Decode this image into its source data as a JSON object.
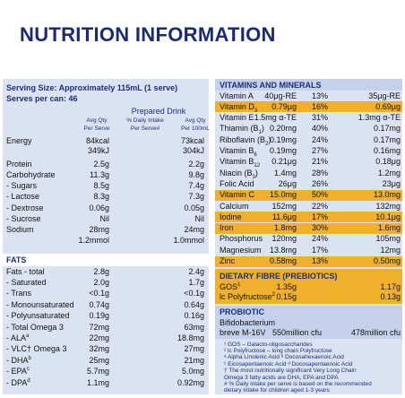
{
  "title": "NUTRITION INFORMATION",
  "left": {
    "serving_size": "Serving Size: Approximately 115mL (1 serve)",
    "serves_per_can": "Serves per can: 46",
    "group_header": "Prepared Drink",
    "columns": [
      [
        "Avg Qty",
        "Per Serve"
      ],
      [
        "% Daily Intake",
        "Per Serve#"
      ],
      [
        "Avg Qty",
        "Per 100mL"
      ]
    ],
    "rows": [
      {
        "name": "Energy",
        "per_serve": [
          "84kcal",
          "349kJ"
        ],
        "per_100ml": [
          "73kcal",
          "304kJ"
        ]
      },
      {
        "name": "Protein",
        "per_serve": "2.5g",
        "per_100ml": "2.2g"
      },
      {
        "name": "Carbohydrate",
        "per_serve": "11.3g",
        "per_100ml": "9.8g"
      },
      {
        "name": "- Sugars",
        "per_serve": "8.5g",
        "per_100ml": "7.4g"
      },
      {
        "name": "- Lactose",
        "per_serve": "8.3g",
        "per_100ml": "7.3g"
      },
      {
        "name": "- Dextrose",
        "per_serve": "0.06g",
        "per_100ml": "0.05g"
      },
      {
        "name": "- Sucrose",
        "per_serve": "Nil",
        "per_100ml": "Nil"
      },
      {
        "name": "Sodium",
        "per_serve": [
          "28mg",
          "1.2mmol"
        ],
        "per_100ml": [
          "24mg",
          "1.0mmol"
        ]
      }
    ],
    "fats_header": "FATS",
    "fats_rows": [
      {
        "name": "Fats - total",
        "per_serve": "2.8g",
        "per_100ml": "2.4g"
      },
      {
        "name": "- Saturated",
        "per_serve": "2.0g",
        "per_100ml": "1.7g"
      },
      {
        "name": "- Trans",
        "per_serve": "<0.1g",
        "per_100ml": "<0.1g"
      },
      {
        "name": "- Monounsaturated",
        "per_serve": "0.74g",
        "per_100ml": "0.64g"
      },
      {
        "name": "- Polyunsaturated",
        "per_serve": "0.19g",
        "per_100ml": "0.16g"
      },
      {
        "name": "- Total Omega 3",
        "per_serve": "72mg",
        "per_100ml": "63mg"
      },
      {
        "name": "- ALA",
        "sup": "a",
        "per_serve": "22mg",
        "per_100ml": "18.8mg"
      },
      {
        "name": "- VLC† Omega 3",
        "per_serve": "32mg",
        "per_100ml": "27mg"
      },
      {
        "name": "- DHA",
        "sup": "b",
        "per_serve": "25mg",
        "per_100ml": "21mg"
      },
      {
        "name": "- EPA",
        "sup": "c",
        "per_serve": "5.7mg",
        "per_100ml": "5.0mg"
      },
      {
        "name": "- DPA",
        "sup": "d",
        "per_serve": "1.1mg",
        "per_100ml": "0.92mg"
      }
    ]
  },
  "right": {
    "header": "VITAMINS AND MINERALS",
    "highlight_color": "#f0b02e",
    "rows": [
      {
        "name": "Vitamin A",
        "per_serve": "40μg-RE",
        "pct": "13%",
        "per_100ml": "35μg-RE"
      },
      {
        "name": "Vitamin D",
        "sub": "3",
        "per_serve": "0.79μg",
        "pct": "16%",
        "per_100ml": "0.69μg",
        "highlight": true
      },
      {
        "name": "Vitamin E",
        "per_serve": "1.5mg α-TE",
        "pct": "31%",
        "per_100ml": "1.3mg α-TE"
      },
      {
        "name": "Thiamin (B",
        "sub": "1",
        "tail": ")",
        "per_serve": "0.20mg",
        "pct": "40%",
        "per_100ml": "0.17mg"
      },
      {
        "name": "Riboflavin (B",
        "sub": "2",
        "tail": ")",
        "per_serve": "0.19mg",
        "pct": "24%",
        "per_100ml": "0.17mg"
      },
      {
        "name": "Vitamin B",
        "sub": "6",
        "per_serve": "0.19mg",
        "pct": "27%",
        "per_100ml": "0.16mg"
      },
      {
        "name": "Vitamin B",
        "sub": "12",
        "per_serve": "0.21μg",
        "pct": "21%",
        "per_100ml": "0.18μg"
      },
      {
        "name": "Niacin (B",
        "sub": "3",
        "tail": ")",
        "per_serve": "1.4mg",
        "pct": "28%",
        "per_100ml": "1.2mg"
      },
      {
        "name": "Folic Acid",
        "per_serve": "26μg",
        "pct": "26%",
        "per_100ml": "23μg"
      },
      {
        "name": "Vitamin C",
        "per_serve": "15.0mg",
        "pct": "50%",
        "per_100ml": "13.0mg",
        "highlight": true
      },
      {
        "name": "Calcium",
        "per_serve": "152mg",
        "pct": "22%",
        "per_100ml": "132mg"
      },
      {
        "name": "Iodine",
        "per_serve": "11.6μg",
        "pct": "17%",
        "per_100ml": "10.1μg",
        "highlight": true
      },
      {
        "name": "Iron",
        "per_serve": "1.8mg",
        "pct": "30%",
        "per_100ml": "1.6mg",
        "highlight": true
      },
      {
        "name": "Phosphorus",
        "per_serve": "120mg",
        "pct": "24%",
        "per_100ml": "105mg"
      },
      {
        "name": "Magnesium",
        "per_serve": "13.8mg",
        "pct": "17%",
        "per_100ml": "12mg"
      },
      {
        "name": "Zinc",
        "per_serve": "0.58mg",
        "pct": "13%",
        "per_100ml": "0.50mg",
        "highlight": true
      }
    ],
    "fibre_header": "DIETARY FIBRE (PREBIOTICS)",
    "fibre_rows": [
      {
        "name": "GOS",
        "sup": "1",
        "per_serve": "1.35g",
        "per_100ml": "1.17g"
      },
      {
        "name": "lc Polyfructose",
        "sup": "2",
        "per_serve": "0.15g",
        "per_100ml": "0.13g"
      }
    ],
    "probiotic_header": "PROBIOTIC",
    "probiotic_name": "Bifidobacterium",
    "probiotic_row": {
      "name": "breve M-16V",
      "per_serve": "550million cfu",
      "per_100ml": "478million cfu"
    },
    "footnotes": [
      "¹ GOS – Galacto-oligosaccharides",
      "² lc Polyfructose – long chain Polyfructose",
      "ᵃ Alpha Linolenic Acid   ᵇ Docosahexaenoic Acid",
      "ᶜ Eicosapentaenoic Acid   ᵈ Docosapentaenoic Acid",
      "† The most nutritionally significant Very Long Chain",
      "Omega 3 fatty acids are DHA, EPA and DPA",
      "# % Daily intake per serve is based on the recommended",
      "dietary intake for children aged 1-3 years"
    ]
  }
}
